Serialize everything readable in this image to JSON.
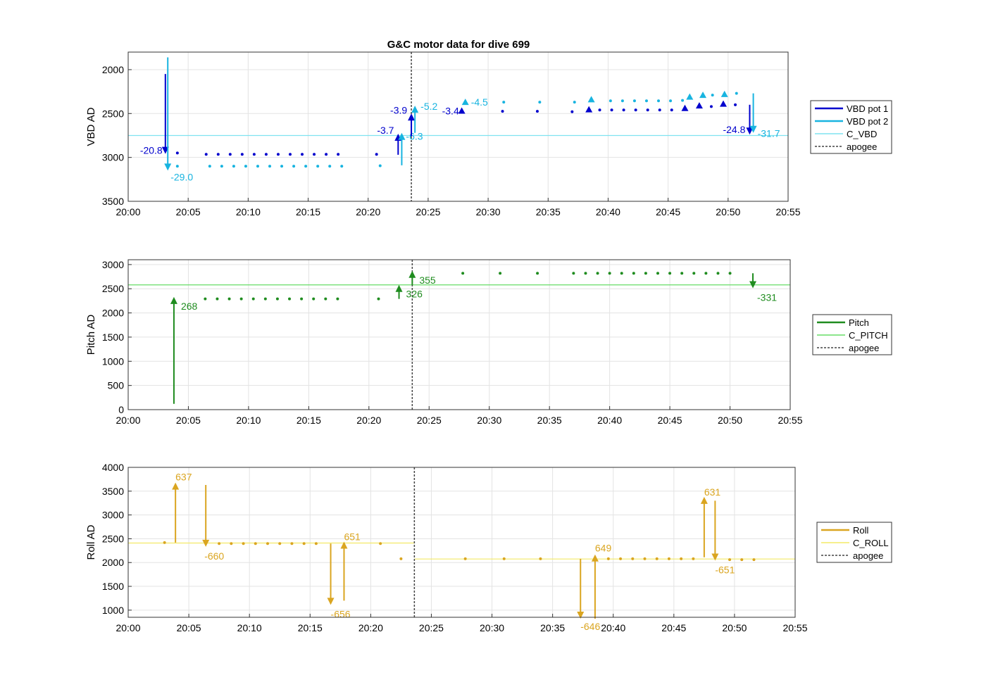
{
  "figure_title": "G&C motor data for dive 699",
  "colors": {
    "vbd1": "#0000cd",
    "vbd2": "#18b4e0",
    "cvbd": "#7fe3f0",
    "pitch": "#1f8c1f",
    "cpitch": "#66dd66",
    "roll": "#daa520",
    "croll": "#f3ea66",
    "apogee": "#444444",
    "grid": "#e3e3e3"
  },
  "chart_data": [
    {
      "type": "scatter",
      "xlabel": "",
      "ylabel": "VBD AD",
      "x_ticks": [
        "20:00",
        "20:05",
        "20:10",
        "20:15",
        "20:20",
        "20:25",
        "20:30",
        "20:35",
        "20:40",
        "20:45",
        "20:50",
        "20:55"
      ],
      "xlim_minutes": [
        0,
        55
      ],
      "ylim": [
        1800,
        3500
      ],
      "y_reversed": true,
      "y_ticks": [
        "2000",
        "2500",
        "3000",
        "3500"
      ],
      "grid": true,
      "legend_placement": "outside-right",
      "legend": [
        "VBD pot 1",
        "VBD pot 2",
        "C_VBD",
        "apogee"
      ],
      "apogee_minutes": 23.6,
      "reference_lines": [
        {
          "name": "C_VBD",
          "y": 2750
        }
      ],
      "series": [
        {
          "name": "VBD pot 1",
          "color_key": "vbd1",
          "x_minutes": [
            4.1,
            6.5,
            7.5,
            8.5,
            9.5,
            10.5,
            11.5,
            12.5,
            13.5,
            14.5,
            15.5,
            16.5,
            17.5,
            20.7,
            31.2,
            34.1,
            37.0,
            39.3,
            40.3,
            41.3,
            42.3,
            43.3,
            44.3,
            45.3,
            48.6,
            50.6
          ],
          "y": [
            2950,
            2965,
            2965,
            2965,
            2965,
            2965,
            2965,
            2965,
            2965,
            2965,
            2965,
            2965,
            2965,
            2965,
            2475,
            2475,
            2480,
            2460,
            2460,
            2460,
            2460,
            2460,
            2460,
            2460,
            2420,
            2400
          ]
        },
        {
          "name": "VBD pot 2",
          "color_key": "vbd2",
          "x_minutes": [
            4.1,
            6.8,
            7.8,
            8.8,
            9.8,
            10.8,
            11.8,
            12.8,
            13.8,
            14.8,
            15.8,
            16.8,
            17.8,
            21.0,
            31.3,
            34.3,
            37.2,
            40.2,
            41.2,
            42.2,
            43.2,
            44.2,
            45.2,
            46.2,
            48.7,
            50.7
          ],
          "y": [
            3100,
            3100,
            3100,
            3100,
            3100,
            3100,
            3100,
            3100,
            3100,
            3100,
            3100,
            3100,
            3100,
            3095,
            2370,
            2370,
            2370,
            2355,
            2355,
            2355,
            2355,
            2355,
            2355,
            2350,
            2290,
            2270
          ]
        }
      ],
      "markers": [
        {
          "series": "VBD pot 1",
          "x_minutes": [
            27.8,
            38.4,
            46.4,
            47.6,
            49.6
          ],
          "y": [
            2470,
            2455,
            2440,
            2410,
            2390
          ]
        },
        {
          "series": "VBD pot 2",
          "x_minutes": [
            28.1,
            38.6,
            46.8,
            47.9,
            49.7
          ],
          "y": [
            2370,
            2340,
            2310,
            2290,
            2280
          ]
        }
      ],
      "arrows": [
        {
          "series": "VBD pot 1",
          "x_minutes": 3.1,
          "y_start": 2050,
          "y_end": 2960,
          "label": "-20.8"
        },
        {
          "series": "VBD pot 2",
          "x_minutes": 3.3,
          "y_start": 1860,
          "y_end": 3150,
          "label": "-29.0"
        },
        {
          "series": "VBD pot 1",
          "x_minutes": 22.5,
          "y_start": 2970,
          "y_end": 2730,
          "label": "-3.7"
        },
        {
          "series": "VBD pot 2",
          "x_minutes": 22.8,
          "y_start": 3090,
          "y_end": 2720,
          "label": "-6.3"
        },
        {
          "series": "VBD pot 1",
          "x_minutes": 23.6,
          "y_start": 2760,
          "y_end": 2500,
          "label": "-3.9"
        },
        {
          "series": "VBD pot 2",
          "x_minutes": 23.9,
          "y_start": 2720,
          "y_end": 2410,
          "label": "-5.2"
        },
        {
          "series": "VBD pot 1",
          "x_minutes": 51.8,
          "y_start": 2400,
          "y_end": 2740,
          "label": "-24.8"
        },
        {
          "series": "VBD pot 2",
          "x_minutes": 52.1,
          "y_start": 2270,
          "y_end": 2720,
          "label": "-31.7"
        }
      ],
      "point_labels": [
        {
          "series": "VBD pot 1",
          "x_minutes": 27.8,
          "y": 2470,
          "label": "-3.4"
        },
        {
          "series": "VBD pot 2",
          "x_minutes": 28.1,
          "y": 2370,
          "label": "-4.5"
        }
      ]
    },
    {
      "type": "scatter",
      "xlabel": "",
      "ylabel": "Pitch AD",
      "x_ticks": [
        "20:00",
        "20:05",
        "20:10",
        "20:15",
        "20:20",
        "20:25",
        "20:30",
        "20:35",
        "20:40",
        "20:45",
        "20:50",
        "20:55"
      ],
      "xlim_minutes": [
        0,
        55
      ],
      "ylim": [
        0,
        3100
      ],
      "y_ticks": [
        "0",
        "500",
        "1000",
        "1500",
        "2000",
        "2500",
        "3000"
      ],
      "grid": true,
      "legend_placement": "outside-right",
      "legend": [
        "Pitch",
        "C_PITCH",
        "apogee"
      ],
      "apogee_minutes": 23.6,
      "reference_lines": [
        {
          "name": "C_PITCH",
          "y": 2580
        }
      ],
      "series": [
        {
          "name": "Pitch",
          "color_key": "pitch",
          "x_minutes": [
            6.4,
            7.4,
            8.4,
            9.4,
            10.4,
            11.4,
            12.4,
            13.4,
            14.4,
            15.4,
            16.4,
            17.4,
            20.8,
            27.8,
            30.9,
            34.0,
            37.0,
            38.0,
            39.0,
            40.0,
            41.0,
            42.0,
            43.0,
            44.0,
            45.0,
            46.0,
            47.0,
            48.0,
            49.0,
            50.0
          ],
          "y": [
            2290,
            2290,
            2290,
            2290,
            2290,
            2290,
            2290,
            2290,
            2290,
            2290,
            2290,
            2290,
            2290,
            2820,
            2820,
            2820,
            2820,
            2820,
            2820,
            2820,
            2820,
            2820,
            2820,
            2820,
            2820,
            2820,
            2820,
            2820,
            2820,
            2820
          ]
        }
      ],
      "arrows": [
        {
          "series": "Pitch",
          "x_minutes": 3.8,
          "y_start": 120,
          "y_end": 2330,
          "label": "268"
        },
        {
          "series": "Pitch",
          "x_minutes": 22.5,
          "y_start": 2290,
          "y_end": 2580,
          "label": "326"
        },
        {
          "series": "Pitch",
          "x_minutes": 23.6,
          "y_start": 2580,
          "y_end": 2870,
          "label": "355"
        },
        {
          "series": "Pitch",
          "x_minutes": 51.9,
          "y_start": 2820,
          "y_end": 2510,
          "label": "-331"
        }
      ]
    },
    {
      "type": "scatter",
      "xlabel": "",
      "ylabel": "Roll AD",
      "x_ticks": [
        "20:00",
        "20:05",
        "20:10",
        "20:15",
        "20:20",
        "20:25",
        "20:30",
        "20:35",
        "20:40",
        "20:45",
        "20:50",
        "20:55"
      ],
      "xlim_minutes": [
        0,
        55
      ],
      "ylim": [
        850,
        4000
      ],
      "y_ticks": [
        "1000",
        "1500",
        "2000",
        "2500",
        "3000",
        "3500",
        "4000"
      ],
      "grid": true,
      "legend_placement": "outside-right",
      "legend": [
        "Roll",
        "C_ROLL",
        "apogee"
      ],
      "apogee_minutes": 23.6,
      "reference_lines": [
        {
          "name": "C_ROLL",
          "y": 2410,
          "x_from_minutes": 0,
          "x_to_minutes": 23.6
        },
        {
          "name": "C_ROLL",
          "y": 2075,
          "x_from_minutes": 23.6,
          "x_to_minutes": 55
        }
      ],
      "series": [
        {
          "name": "Roll",
          "color_key": "roll",
          "x_minutes": [
            3.0,
            7.5,
            8.5,
            9.5,
            10.5,
            11.5,
            12.5,
            13.5,
            14.5,
            15.5,
            20.8,
            22.5,
            27.8,
            31.0,
            34.0,
            39.6,
            40.6,
            41.6,
            42.6,
            43.6,
            44.6,
            45.6,
            46.6,
            49.6,
            50.6,
            51.6
          ],
          "y": [
            2420,
            2400,
            2400,
            2400,
            2400,
            2400,
            2400,
            2400,
            2400,
            2400,
            2400,
            2080,
            2080,
            2080,
            2080,
            2080,
            2080,
            2080,
            2080,
            2080,
            2080,
            2080,
            2080,
            2060,
            2060,
            2060
          ]
        }
      ],
      "arrows": [
        {
          "series": "Roll",
          "x_minutes": 3.9,
          "y_start": 2420,
          "y_end": 3680,
          "label": "637"
        },
        {
          "series": "Roll",
          "x_minutes": 6.4,
          "y_start": 3630,
          "y_end": 2330,
          "label": "-660"
        },
        {
          "series": "Roll",
          "x_minutes": 16.7,
          "y_start": 2400,
          "y_end": 1110,
          "label": "-656"
        },
        {
          "series": "Roll",
          "x_minutes": 17.8,
          "y_start": 1200,
          "y_end": 2440,
          "label": "651"
        },
        {
          "series": "Roll",
          "x_minutes": 37.3,
          "y_start": 2080,
          "y_end": 820,
          "label": "-646"
        },
        {
          "series": "Roll",
          "x_minutes": 38.5,
          "y_start": 820,
          "y_end": 2170,
          "label": "649"
        },
        {
          "series": "Roll",
          "x_minutes": 47.5,
          "y_start": 2110,
          "y_end": 3380,
          "label": "631"
        },
        {
          "series": "Roll",
          "x_minutes": 48.4,
          "y_start": 3300,
          "y_end": 2040,
          "label": "-651"
        }
      ]
    }
  ]
}
